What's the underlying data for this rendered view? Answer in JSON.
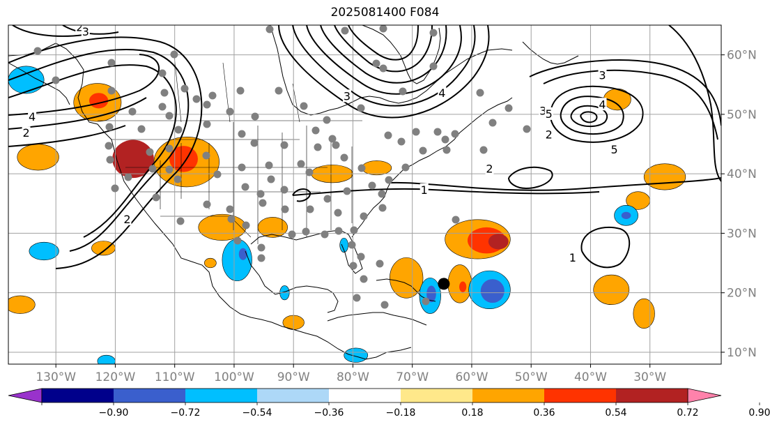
{
  "title": "2025081400 F084",
  "map": {
    "lat_labels": [
      "60°N",
      "50°N",
      "40°N",
      "30°N",
      "20°N",
      "10°N"
    ],
    "lat_values": [
      60,
      50,
      40,
      30,
      20,
      10
    ],
    "lon_labels": [
      "130°W",
      "120°W",
      "110°W",
      "100°W",
      "90°W",
      "80°W",
      "70°W",
      "60°W",
      "50°W",
      "40°W",
      "30°W"
    ],
    "lon_values": [
      -130,
      -120,
      -110,
      -100,
      -90,
      -80,
      -70,
      -60,
      -50,
      -40,
      -30
    ],
    "extent": {
      "lon_min": -138,
      "lon_max": -18,
      "lat_min": 8,
      "lat_max": 65
    },
    "station_marker": {
      "lon": -64.7,
      "lat": 21.5
    },
    "contour_labels": [
      {
        "text": "1",
        "lon": -68,
        "lat": 37.2
      },
      {
        "text": "1",
        "lon": -43,
        "lat": 25.8
      },
      {
        "text": "2",
        "lon": -57,
        "lat": 40.8
      },
      {
        "text": "2",
        "lon": -47,
        "lat": 46.5
      },
      {
        "text": "2",
        "lon": -135,
        "lat": 46.8
      },
      {
        "text": "2",
        "lon": -126,
        "lat": 64.6
      },
      {
        "text": "2",
        "lon": -118,
        "lat": 32.3
      },
      {
        "text": "3",
        "lon": -125,
        "lat": 63.8
      },
      {
        "text": "3",
        "lon": -81,
        "lat": 53
      },
      {
        "text": "3",
        "lon": -48,
        "lat": 50.5
      },
      {
        "text": "3",
        "lon": -38,
        "lat": 56.5
      },
      {
        "text": "4",
        "lon": -134,
        "lat": 49.5
      },
      {
        "text": "4",
        "lon": -65,
        "lat": 53.5
      },
      {
        "text": "4",
        "lon": -38,
        "lat": 51.6
      },
      {
        "text": "5",
        "lon": -47,
        "lat": 50
      },
      {
        "text": "5",
        "lon": -36,
        "lat": 44
      }
    ]
  },
  "colorbar": {
    "tick_labels": [
      "−0.90",
      "−0.72",
      "−0.54",
      "−0.36",
      "−0.18",
      "0.18",
      "0.36",
      "0.54",
      "0.72",
      "0.90"
    ],
    "boundaries": [
      -0.9,
      -0.72,
      -0.54,
      -0.36,
      -0.18,
      0.18,
      0.36,
      0.54,
      0.72,
      0.9
    ],
    "under_color": "#9932cc",
    "over_color": "#ff82ab",
    "colors": [
      "#00008b",
      "#3a5fcd",
      "#00bfff",
      "#add8f7",
      "#ffffff",
      "#ffe88a",
      "#ffa500",
      "#ff3300",
      "#b22222"
    ]
  },
  "shading": {
    "positive": [
      {
        "lon": -117,
        "lat": 42.5,
        "rx": 3.5,
        "ry": 3.2,
        "level": 3
      },
      {
        "lon": -108,
        "lat": 42,
        "rx": 5.5,
        "ry": 4.2,
        "level": 1
      },
      {
        "lon": -108.5,
        "lat": 42.5,
        "rx": 2.4,
        "ry": 2.2,
        "level": 2
      },
      {
        "lon": -123,
        "lat": 52,
        "rx": 4,
        "ry": 3.2,
        "level": 1
      },
      {
        "lon": -122.8,
        "lat": 52.3,
        "rx": 1.6,
        "ry": 1.3,
        "level": 2
      },
      {
        "lon": -133,
        "lat": 42.8,
        "rx": 3.5,
        "ry": 2.2,
        "level": 1
      },
      {
        "lon": -102,
        "lat": 31,
        "rx": 4,
        "ry": 2.2,
        "level": 1
      },
      {
        "lon": -93.5,
        "lat": 31,
        "rx": 2.5,
        "ry": 1.7,
        "level": 1
      },
      {
        "lon": -83.5,
        "lat": 40,
        "rx": 3.5,
        "ry": 1.5,
        "level": 1
      },
      {
        "lon": -76,
        "lat": 41,
        "rx": 2.5,
        "ry": 1.2,
        "level": 1
      },
      {
        "lon": -59,
        "lat": 29,
        "rx": 5.5,
        "ry": 3.3,
        "level": 1
      },
      {
        "lon": -57.5,
        "lat": 28.8,
        "rx": 3.2,
        "ry": 2.2,
        "level": 2
      },
      {
        "lon": -55.5,
        "lat": 28.6,
        "rx": 1.7,
        "ry": 1.3,
        "level": 3
      },
      {
        "lon": -71,
        "lat": 22.5,
        "rx": 2.8,
        "ry": 3.4,
        "level": 1
      },
      {
        "lon": -62,
        "lat": 21.5,
        "rx": 2,
        "ry": 3.2,
        "level": 1
      },
      {
        "lon": -61.5,
        "lat": 21,
        "rx": 0.6,
        "ry": 0.9,
        "level": 2
      },
      {
        "lon": -36.5,
        "lat": 20.5,
        "rx": 3,
        "ry": 2.5,
        "level": 1
      },
      {
        "lon": -35.5,
        "lat": 52.5,
        "rx": 2.3,
        "ry": 1.8,
        "level": 1
      },
      {
        "lon": -27.5,
        "lat": 39.5,
        "rx": 3.5,
        "ry": 2.2,
        "level": 1
      },
      {
        "lon": -32,
        "lat": 35.5,
        "rx": 2,
        "ry": 1.5,
        "level": 1
      },
      {
        "lon": -31,
        "lat": 16.5,
        "rx": 1.8,
        "ry": 2.5,
        "level": 1
      },
      {
        "lon": -136,
        "lat": 18,
        "rx": 2.5,
        "ry": 1.5,
        "level": 1
      },
      {
        "lon": -122,
        "lat": 27.5,
        "rx": 2,
        "ry": 1.2,
        "level": 1
      },
      {
        "lon": -90,
        "lat": 15,
        "rx": 1.8,
        "ry": 1.2,
        "level": 1
      },
      {
        "lon": -104,
        "lat": 25,
        "rx": 1,
        "ry": 0.8,
        "level": 1
      }
    ],
    "negative": [
      {
        "lon": -135,
        "lat": 55.8,
        "rx": 3,
        "ry": 2.3,
        "level": 1
      },
      {
        "lon": -132,
        "lat": 27,
        "rx": 2.5,
        "ry": 1.5,
        "level": 1
      },
      {
        "lon": -99.5,
        "lat": 25.5,
        "rx": 2.5,
        "ry": 3.5,
        "level": 1
      },
      {
        "lon": -98.5,
        "lat": 26.5,
        "rx": 0.7,
        "ry": 1,
        "level": 2
      },
      {
        "lon": -67,
        "lat": 19.5,
        "rx": 1.8,
        "ry": 3,
        "level": 1
      },
      {
        "lon": -66.8,
        "lat": 19.8,
        "rx": 0.8,
        "ry": 1.4,
        "level": 2
      },
      {
        "lon": -57,
        "lat": 20.5,
        "rx": 3.5,
        "ry": 3.2,
        "level": 1
      },
      {
        "lon": -56.5,
        "lat": 20.3,
        "rx": 2,
        "ry": 2,
        "level": 2
      },
      {
        "lon": -34,
        "lat": 33,
        "rx": 2,
        "ry": 1.7,
        "level": 1
      },
      {
        "lon": -34,
        "lat": 33,
        "rx": 0.8,
        "ry": 0.6,
        "level": 2
      },
      {
        "lon": -79.5,
        "lat": 9.5,
        "rx": 2,
        "ry": 1.2,
        "level": 1
      },
      {
        "lon": -121.5,
        "lat": 8.5,
        "rx": 1.5,
        "ry": 1,
        "level": 1
      },
      {
        "lon": -91.5,
        "lat": 20,
        "rx": 0.8,
        "ry": 1.2,
        "level": 1
      },
      {
        "lon": -81.5,
        "lat": 28,
        "rx": 0.7,
        "ry": 1.2,
        "level": 1
      }
    ]
  }
}
